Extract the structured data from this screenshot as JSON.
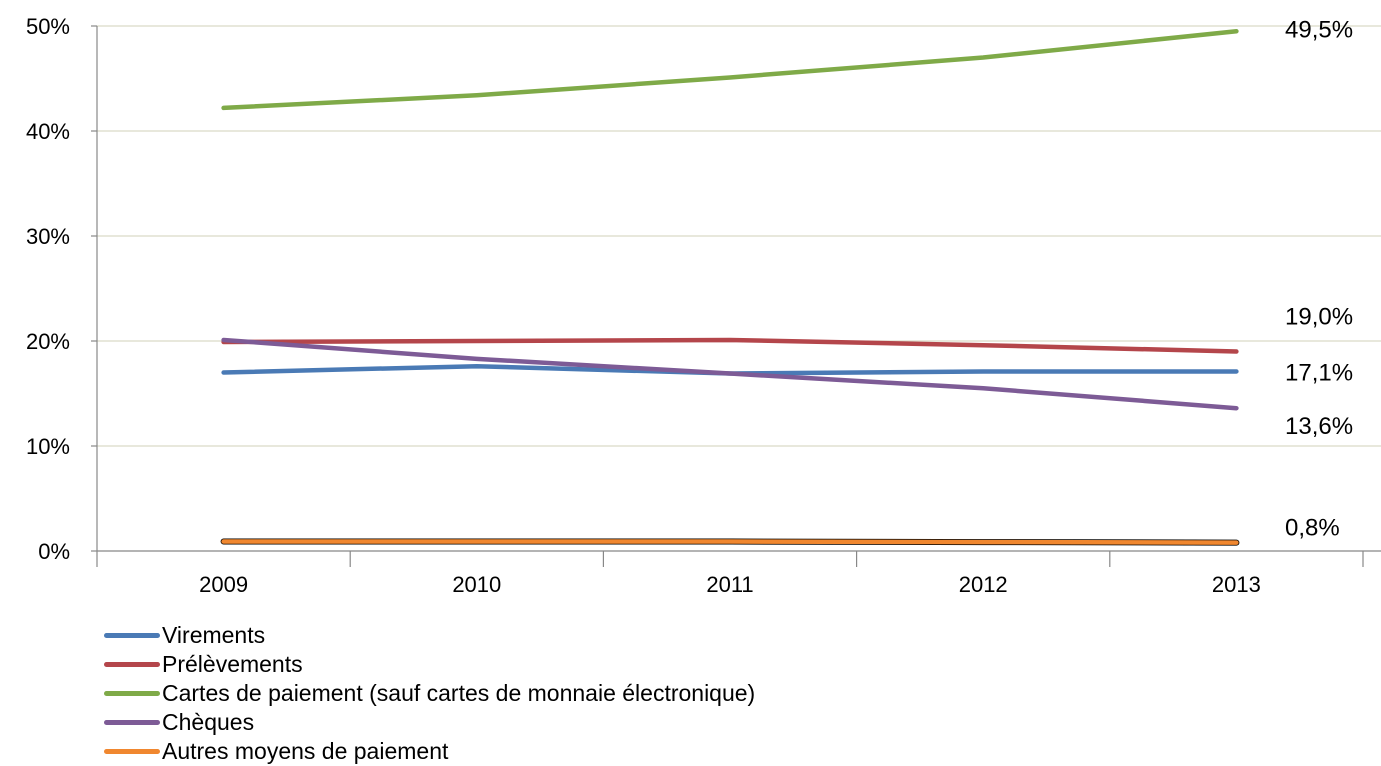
{
  "chart_data": {
    "type": "line",
    "categories": [
      "2009",
      "2010",
      "2011",
      "2012",
      "2013"
    ],
    "ylim": [
      0,
      50
    ],
    "yticks": [
      0,
      10,
      20,
      30,
      40,
      50
    ],
    "ytick_labels": [
      "0%",
      "10%",
      "20%",
      "30%",
      "40%",
      "50%"
    ],
    "grid": "horizontal",
    "legend_position": "bottom-left",
    "series": [
      {
        "name": "Virements",
        "color": "#4a7ab5",
        "values": [
          17.0,
          17.6,
          16.9,
          17.1,
          17.1
        ],
        "end_label": "17,1%"
      },
      {
        "name": "Prélèvements",
        "color": "#b4464b",
        "values": [
          19.9,
          20.0,
          20.1,
          19.6,
          19.0
        ],
        "end_label": "19,0%"
      },
      {
        "name": "Cartes de paiement (sauf cartes de monnaie électronique)",
        "color": "#7faa48",
        "values": [
          42.2,
          43.4,
          45.1,
          47.0,
          49.5
        ],
        "end_label": "49,5%"
      },
      {
        "name": "Chèques",
        "color": "#7d5b96",
        "values": [
          20.1,
          18.3,
          16.9,
          15.5,
          13.6
        ],
        "end_label": "13,6%"
      },
      {
        "name": "Autres moyens de paiement",
        "color": "#f0872f",
        "values": [
          0.9,
          0.9,
          0.9,
          0.85,
          0.8
        ],
        "end_label": "0,8%"
      }
    ]
  }
}
